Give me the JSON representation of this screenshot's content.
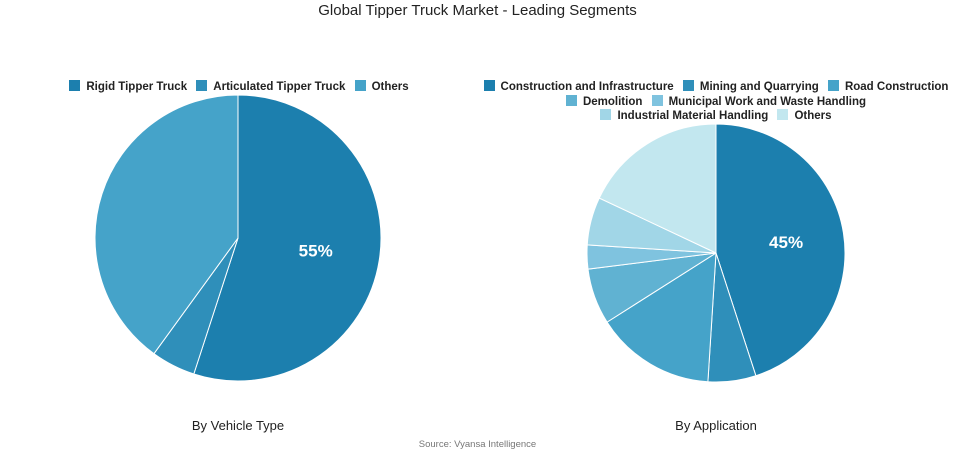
{
  "title": "Global Tipper Truck Market - Leading Segments",
  "source": "Source: Vyansa Intelligence",
  "chart_data": [
    {
      "type": "pie",
      "caption": "By Vehicle Type",
      "categories": [
        "Rigid Tipper Truck",
        "Articulated Tipper Truck",
        "Others"
      ],
      "values": [
        55,
        5,
        40
      ],
      "colors": [
        "#1c7fae",
        "#2f8fba",
        "#45a3c9"
      ],
      "labels": [
        "55%",
        "",
        ""
      ]
    },
    {
      "type": "pie",
      "caption": "By Application",
      "categories": [
        "Construction and Infrastructure",
        "Mining and Quarrying",
        "Road Construction",
        "Demolition",
        "Municipal Work and Waste Handling",
        "Industrial Material Handling",
        "Others"
      ],
      "values": [
        45,
        6,
        15,
        7,
        3,
        6,
        18
      ],
      "colors": [
        "#1c7fae",
        "#2f8fba",
        "#45a3c9",
        "#60b2d2",
        "#7fc3df",
        "#a1d6e7",
        "#c2e7ef"
      ],
      "labels": [
        "45%",
        "",
        "",
        "",
        "",
        "",
        ""
      ]
    }
  ]
}
